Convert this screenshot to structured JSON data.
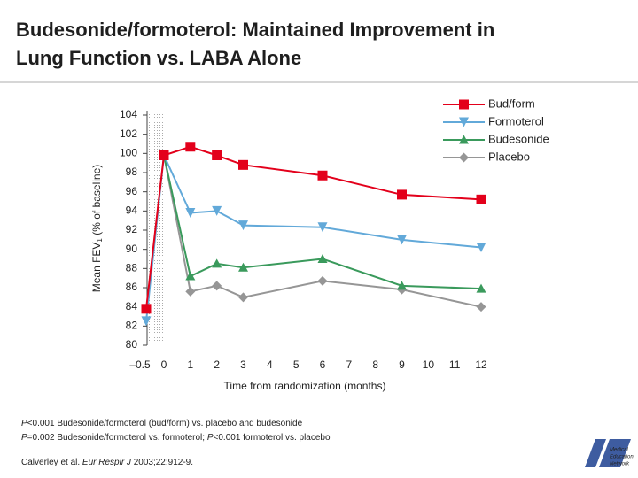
{
  "chart_data": {
    "type": "line",
    "title": [
      "Budesonide/formoterol: Maintained Improvement in",
      "Lung Function vs. LABA Alone"
    ],
    "ylabel": [
      "Mean FEV",
      "1",
      " (% of baseline)"
    ],
    "xlabel": "Time from randomization (months)",
    "x": [
      -0.5,
      0,
      1,
      2,
      3,
      6,
      9,
      12
    ],
    "xlim": [
      -0.5,
      12
    ],
    "xticks": [
      {
        "value": -0.5,
        "label": "–0.5"
      },
      0,
      1,
      2,
      3,
      4,
      5,
      6,
      7,
      8,
      9,
      10,
      11,
      12
    ],
    "ylim": [
      80,
      104
    ],
    "yticks": [
      80,
      82,
      84,
      86,
      88,
      90,
      92,
      94,
      96,
      98,
      100,
      102,
      104
    ],
    "series": [
      {
        "name": "Bud/form",
        "color": "#e3001b",
        "marker": "square",
        "values": [
          83.8,
          99.8,
          100.7,
          99.8,
          98.8,
          97.7,
          95.7,
          95.2
        ]
      },
      {
        "name": "Formoterol",
        "color": "#62a9d9",
        "marker": "triangle-down",
        "values": [
          82.5,
          99.8,
          93.8,
          94.0,
          92.5,
          92.3,
          91.0,
          90.2
        ]
      },
      {
        "name": "Budesonide",
        "color": "#3a9a5c",
        "marker": "triangle-up",
        "values": [
          null,
          99.8,
          87.2,
          88.5,
          88.1,
          89.0,
          86.2,
          85.9
        ]
      },
      {
        "name": "Placebo",
        "color": "#969696",
        "marker": "diamond",
        "values": [
          null,
          99.8,
          85.6,
          86.2,
          85.0,
          86.7,
          85.8,
          84.0
        ]
      }
    ],
    "footnotes": [
      [
        {
          "text": "P",
          "italic": true
        },
        {
          "text": "<0.001 Budesonide/formoterol (bud/form) vs. placebo and budesonide",
          "italic": false
        }
      ],
      [
        {
          "text": "P",
          "italic": true
        },
        {
          "text": "=0.002 Budesonide/formoterol vs. formoterol; ",
          "italic": false
        },
        {
          "text": "P",
          "italic": true
        },
        {
          "text": "<0.001 formoterol vs. placebo",
          "italic": false
        }
      ]
    ],
    "citation": [
      {
        "text": "Calverley et al. ",
        "italic": false
      },
      {
        "text": "Eur Respir J",
        "italic": true
      },
      {
        "text": " 2003;22:912-9.",
        "italic": false
      }
    ],
    "logo": [
      "Medical",
      "Education",
      "Network"
    ]
  }
}
